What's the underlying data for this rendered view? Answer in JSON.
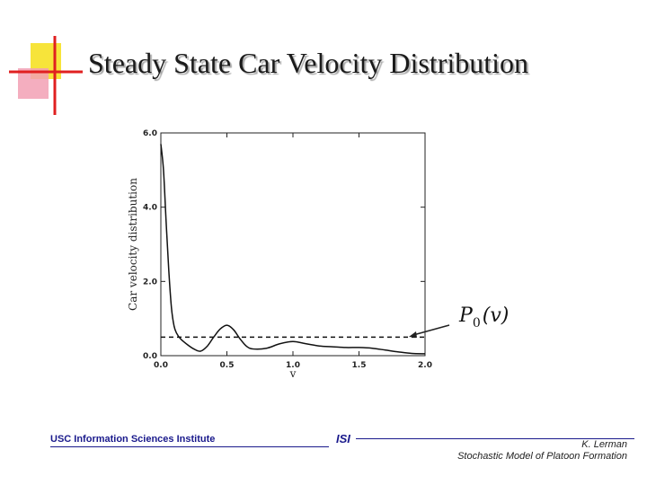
{
  "slide": {
    "title": "Steady State Car Velocity Distribution"
  },
  "footer": {
    "left": "USC Information Sciences Institute",
    "center": "ISI",
    "right_line1": "K. Lerman",
    "right_line2": "Stochastic Model of Platoon Formation"
  },
  "colors": {
    "deco_yellow": "#f7e43a",
    "deco_pink": "#f2a0b4",
    "deco_red": "#e02020",
    "footer_blue": "#1a1a8c"
  },
  "chart_data": {
    "type": "line",
    "title": "",
    "xlabel": "v",
    "ylabel": "Car velocity distribution",
    "xlim": [
      0.0,
      2.0
    ],
    "ylim": [
      0.0,
      6.0
    ],
    "xticks": [
      "0.0",
      "0.5",
      "1.0",
      "1.5",
      "2.0"
    ],
    "yticks": [
      "0.0",
      "2.0",
      "4.0",
      "6.0"
    ],
    "grid": false,
    "series": [
      {
        "name": "",
        "style": "solid",
        "x": [
          0.0,
          0.02,
          0.04,
          0.06,
          0.08,
          0.1,
          0.12,
          0.15,
          0.2,
          0.25,
          0.3,
          0.35,
          0.4,
          0.45,
          0.5,
          0.55,
          0.6,
          0.65,
          0.7,
          0.8,
          0.9,
          1.0,
          1.1,
          1.2,
          1.3,
          1.4,
          1.5,
          1.6,
          1.7,
          1.8,
          1.9,
          2.0
        ],
        "y": [
          5.7,
          5.0,
          3.6,
          2.3,
          1.3,
          0.8,
          0.6,
          0.45,
          0.3,
          0.18,
          0.12,
          0.25,
          0.5,
          0.72,
          0.82,
          0.7,
          0.45,
          0.25,
          0.18,
          0.2,
          0.32,
          0.38,
          0.32,
          0.26,
          0.24,
          0.22,
          0.22,
          0.2,
          0.15,
          0.1,
          0.06,
          0.05
        ]
      },
      {
        "name": "",
        "style": "dashed",
        "x": [
          0.0,
          2.0
        ],
        "y": [
          0.5,
          0.5
        ]
      }
    ],
    "annotations": [
      {
        "label_base": "P",
        "label_sub": "0",
        "label_arg": "(v)",
        "points_to": [
          2.0,
          0.5
        ]
      }
    ]
  }
}
